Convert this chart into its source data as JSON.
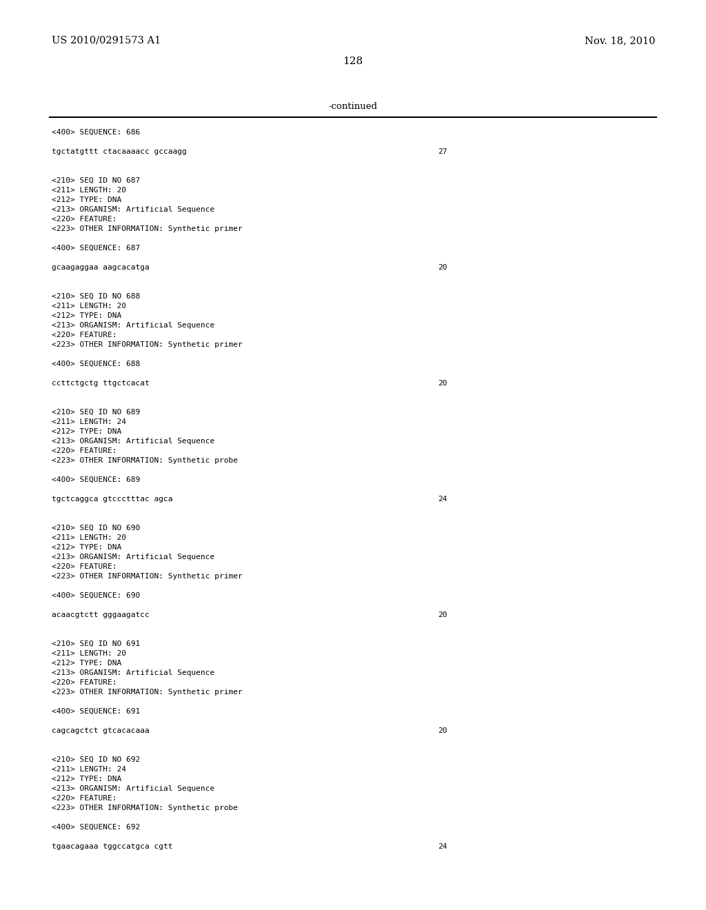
{
  "header_left": "US 2010/0291573 A1",
  "header_right": "Nov. 18, 2010",
  "page_number": "128",
  "continued_label": "-continued",
  "background_color": "#ffffff",
  "text_color": "#000000",
  "line_color": "#000000",
  "header_font_size": 10.5,
  "mono_font_size": 8.0,
  "page_num_font_size": 11,
  "continued_font_size": 9.5,
  "content_lines": [
    {
      "text": "<400> SEQUENCE: 686",
      "right_num": null
    },
    {
      "text": "",
      "right_num": null
    },
    {
      "text": "tgctatgttt ctacaaaacc gccaagg",
      "right_num": "27"
    },
    {
      "text": "",
      "right_num": null
    },
    {
      "text": "",
      "right_num": null
    },
    {
      "text": "<210> SEQ ID NO 687",
      "right_num": null
    },
    {
      "text": "<211> LENGTH: 20",
      "right_num": null
    },
    {
      "text": "<212> TYPE: DNA",
      "right_num": null
    },
    {
      "text": "<213> ORGANISM: Artificial Sequence",
      "right_num": null
    },
    {
      "text": "<220> FEATURE:",
      "right_num": null
    },
    {
      "text": "<223> OTHER INFORMATION: Synthetic primer",
      "right_num": null
    },
    {
      "text": "",
      "right_num": null
    },
    {
      "text": "<400> SEQUENCE: 687",
      "right_num": null
    },
    {
      "text": "",
      "right_num": null
    },
    {
      "text": "gcaagaggaa aagcacatga",
      "right_num": "20"
    },
    {
      "text": "",
      "right_num": null
    },
    {
      "text": "",
      "right_num": null
    },
    {
      "text": "<210> SEQ ID NO 688",
      "right_num": null
    },
    {
      "text": "<211> LENGTH: 20",
      "right_num": null
    },
    {
      "text": "<212> TYPE: DNA",
      "right_num": null
    },
    {
      "text": "<213> ORGANISM: Artificial Sequence",
      "right_num": null
    },
    {
      "text": "<220> FEATURE:",
      "right_num": null
    },
    {
      "text": "<223> OTHER INFORMATION: Synthetic primer",
      "right_num": null
    },
    {
      "text": "",
      "right_num": null
    },
    {
      "text": "<400> SEQUENCE: 688",
      "right_num": null
    },
    {
      "text": "",
      "right_num": null
    },
    {
      "text": "ccttctgctg ttgctcacat",
      "right_num": "20"
    },
    {
      "text": "",
      "right_num": null
    },
    {
      "text": "",
      "right_num": null
    },
    {
      "text": "<210> SEQ ID NO 689",
      "right_num": null
    },
    {
      "text": "<211> LENGTH: 24",
      "right_num": null
    },
    {
      "text": "<212> TYPE: DNA",
      "right_num": null
    },
    {
      "text": "<213> ORGANISM: Artificial Sequence",
      "right_num": null
    },
    {
      "text": "<220> FEATURE:",
      "right_num": null
    },
    {
      "text": "<223> OTHER INFORMATION: Synthetic probe",
      "right_num": null
    },
    {
      "text": "",
      "right_num": null
    },
    {
      "text": "<400> SEQUENCE: 689",
      "right_num": null
    },
    {
      "text": "",
      "right_num": null
    },
    {
      "text": "tgctcaggca gtccctttac agca",
      "right_num": "24"
    },
    {
      "text": "",
      "right_num": null
    },
    {
      "text": "",
      "right_num": null
    },
    {
      "text": "<210> SEQ ID NO 690",
      "right_num": null
    },
    {
      "text": "<211> LENGTH: 20",
      "right_num": null
    },
    {
      "text": "<212> TYPE: DNA",
      "right_num": null
    },
    {
      "text": "<213> ORGANISM: Artificial Sequence",
      "right_num": null
    },
    {
      "text": "<220> FEATURE:",
      "right_num": null
    },
    {
      "text": "<223> OTHER INFORMATION: Synthetic primer",
      "right_num": null
    },
    {
      "text": "",
      "right_num": null
    },
    {
      "text": "<400> SEQUENCE: 690",
      "right_num": null
    },
    {
      "text": "",
      "right_num": null
    },
    {
      "text": "acaacgtctt gggaagatcc",
      "right_num": "20"
    },
    {
      "text": "",
      "right_num": null
    },
    {
      "text": "",
      "right_num": null
    },
    {
      "text": "<210> SEQ ID NO 691",
      "right_num": null
    },
    {
      "text": "<211> LENGTH: 20",
      "right_num": null
    },
    {
      "text": "<212> TYPE: DNA",
      "right_num": null
    },
    {
      "text": "<213> ORGANISM: Artificial Sequence",
      "right_num": null
    },
    {
      "text": "<220> FEATURE:",
      "right_num": null
    },
    {
      "text": "<223> OTHER INFORMATION: Synthetic primer",
      "right_num": null
    },
    {
      "text": "",
      "right_num": null
    },
    {
      "text": "<400> SEQUENCE: 691",
      "right_num": null
    },
    {
      "text": "",
      "right_num": null
    },
    {
      "text": "cagcagctct gtcacacaaa",
      "right_num": "20"
    },
    {
      "text": "",
      "right_num": null
    },
    {
      "text": "",
      "right_num": null
    },
    {
      "text": "<210> SEQ ID NO 692",
      "right_num": null
    },
    {
      "text": "<211> LENGTH: 24",
      "right_num": null
    },
    {
      "text": "<212> TYPE: DNA",
      "right_num": null
    },
    {
      "text": "<213> ORGANISM: Artificial Sequence",
      "right_num": null
    },
    {
      "text": "<220> FEATURE:",
      "right_num": null
    },
    {
      "text": "<223> OTHER INFORMATION: Synthetic probe",
      "right_num": null
    },
    {
      "text": "",
      "right_num": null
    },
    {
      "text": "<400> SEQUENCE: 692",
      "right_num": null
    },
    {
      "text": "",
      "right_num": null
    },
    {
      "text": "tgaacagaaa tggccatgca cgtt",
      "right_num": "24"
    }
  ]
}
